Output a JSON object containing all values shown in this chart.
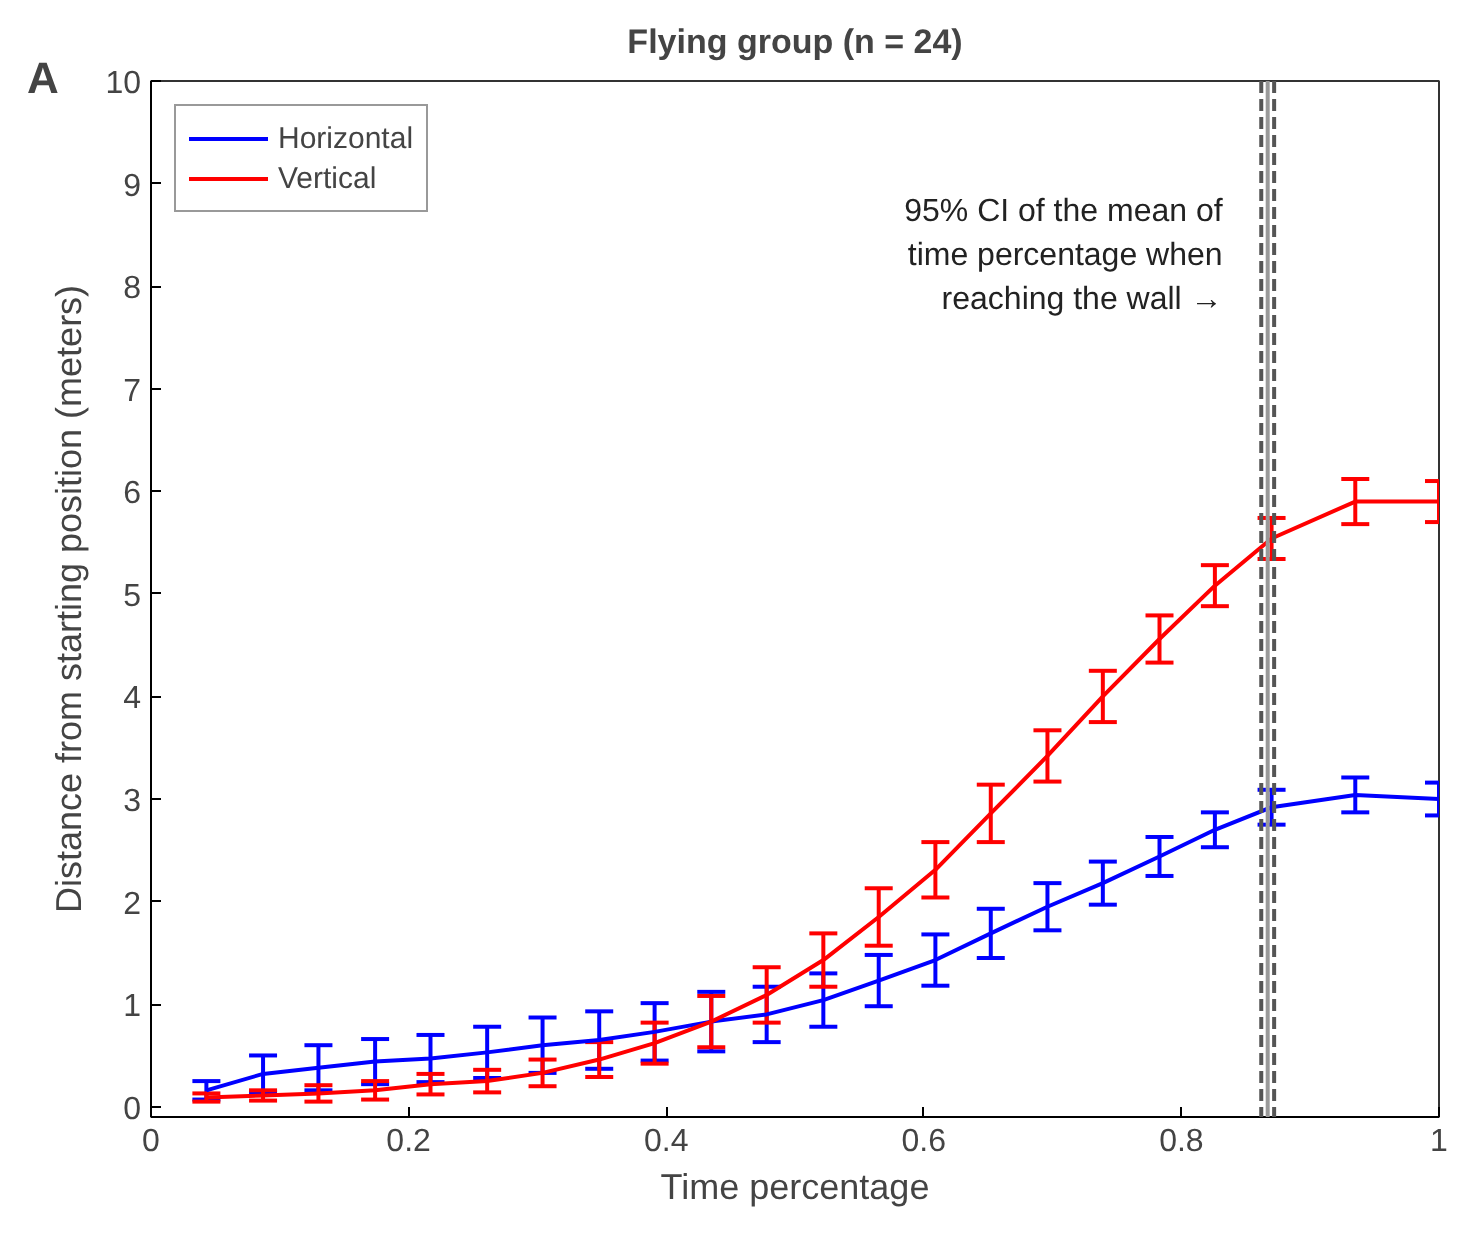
{
  "chart_data": {
    "type": "line",
    "title": "Flying group (n = 24)",
    "xlabel": "Time percentage",
    "ylabel": "Distance from starting position (meters)",
    "x": [
      0.043,
      0.087,
      0.13,
      0.174,
      0.217,
      0.261,
      0.304,
      0.348,
      0.391,
      0.435,
      0.478,
      0.522,
      0.565,
      0.609,
      0.652,
      0.696,
      0.739,
      0.783,
      0.826,
      0.87,
      0.935,
      1.0
    ],
    "series": [
      {
        "name": "Horizontal",
        "color": "#0000ff",
        "values": [
          0.16,
          0.32,
          0.38,
          0.44,
          0.47,
          0.53,
          0.6,
          0.65,
          0.73,
          0.83,
          0.9,
          1.04,
          1.23,
          1.43,
          1.69,
          1.95,
          2.18,
          2.44,
          2.7,
          2.92,
          3.04,
          3.0
        ],
        "errors": [
          0.09,
          0.18,
          0.22,
          0.22,
          0.23,
          0.25,
          0.27,
          0.28,
          0.28,
          0.29,
          0.27,
          0.26,
          0.25,
          0.25,
          0.24,
          0.23,
          0.21,
          0.19,
          0.17,
          0.17,
          0.17,
          0.16
        ]
      },
      {
        "name": "Vertical",
        "color": "#ff0000",
        "values": [
          0.09,
          0.11,
          0.13,
          0.16,
          0.22,
          0.25,
          0.33,
          0.46,
          0.62,
          0.83,
          1.09,
          1.43,
          1.85,
          2.31,
          2.86,
          3.42,
          4.0,
          4.56,
          5.08,
          5.54,
          5.9,
          5.9
        ],
        "errors": [
          0.04,
          0.05,
          0.08,
          0.09,
          0.1,
          0.11,
          0.13,
          0.17,
          0.2,
          0.25,
          0.27,
          0.26,
          0.28,
          0.27,
          0.28,
          0.25,
          0.25,
          0.23,
          0.2,
          0.2,
          0.22,
          0.2
        ]
      }
    ],
    "xlim": [
      0,
      1
    ],
    "ylim": [
      -0.1,
      10
    ],
    "xticks": [
      0,
      0.2,
      0.4,
      0.6,
      0.8,
      1
    ],
    "yticks": [
      0,
      1,
      2,
      3,
      4,
      5,
      6,
      7,
      8,
      9,
      10
    ],
    "ref_lines": [
      {
        "axis": "x",
        "value": 0.862,
        "color": "#555555",
        "line_style": "dashed"
      },
      {
        "axis": "x",
        "value": 0.867,
        "color": "#999999",
        "line_style": "solid"
      },
      {
        "axis": "x",
        "value": 0.872,
        "color": "#555555",
        "line_style": "dashed"
      }
    ],
    "annotations": [
      "A",
      {
        "text": "95% CI of the mean of\ntime percentage when\nreaching the wall →",
        "x": 0.862,
        "y": 7.7
      }
    ],
    "legend": "top left",
    "grid": false,
    "marker": "none",
    "line_style": "solid"
  }
}
